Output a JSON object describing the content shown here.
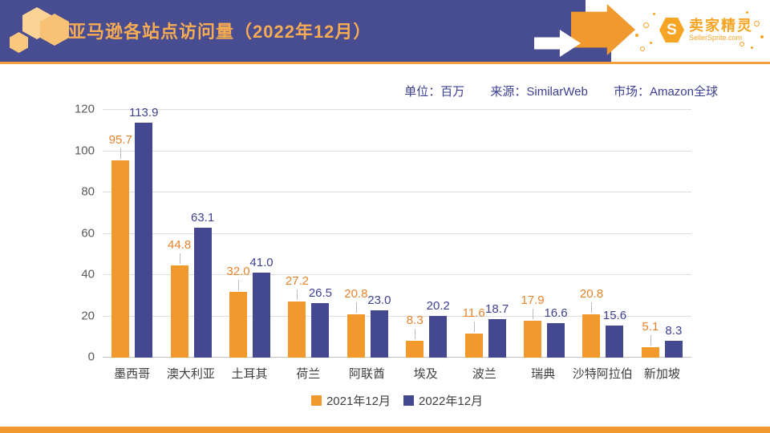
{
  "header": {
    "title": "亚马逊各站点访问量（2022年12月）",
    "logo": {
      "name": "卖家精灵",
      "domain": "SellerSprite.com"
    }
  },
  "meta": {
    "unit": "单位：百万",
    "source": "来源：SimilarWeb",
    "market": "市场：Amazon全球"
  },
  "colors": {
    "header_bg": "#484C90",
    "title_orange": "#F7AB52",
    "bar_orange": "#F2992E",
    "bar_navy": "#444890",
    "label_orange": "#E8832C",
    "label_navy": "#3E4290",
    "meta_text": "#3A3E8F",
    "footer_orange": "#F0992E"
  },
  "chart_data": {
    "type": "bar",
    "title": "亚马逊各站点访问量（2022年12月）",
    "unit": "百万",
    "categories": [
      "墨西哥",
      "澳大利亚",
      "土耳其",
      "荷兰",
      "阿联酋",
      "埃及",
      "波兰",
      "瑞典",
      "沙特阿拉伯",
      "新加坡"
    ],
    "series": [
      {
        "name": "2021年12月",
        "color": "#F2992E",
        "values": [
          95.7,
          44.8,
          32.0,
          27.2,
          20.8,
          8.3,
          11.6,
          17.9,
          20.8,
          5.1
        ]
      },
      {
        "name": "2022年12月",
        "color": "#444890",
        "values": [
          113.9,
          63.1,
          41.0,
          26.5,
          23.0,
          20.2,
          18.7,
          16.6,
          15.6,
          8.3
        ]
      }
    ],
    "ylim": [
      0,
      120
    ],
    "yticks": [
      0,
      20,
      40,
      60,
      80,
      100,
      120
    ],
    "grid": true,
    "legend_position": "bottom",
    "xlabel": "",
    "ylabel": ""
  }
}
